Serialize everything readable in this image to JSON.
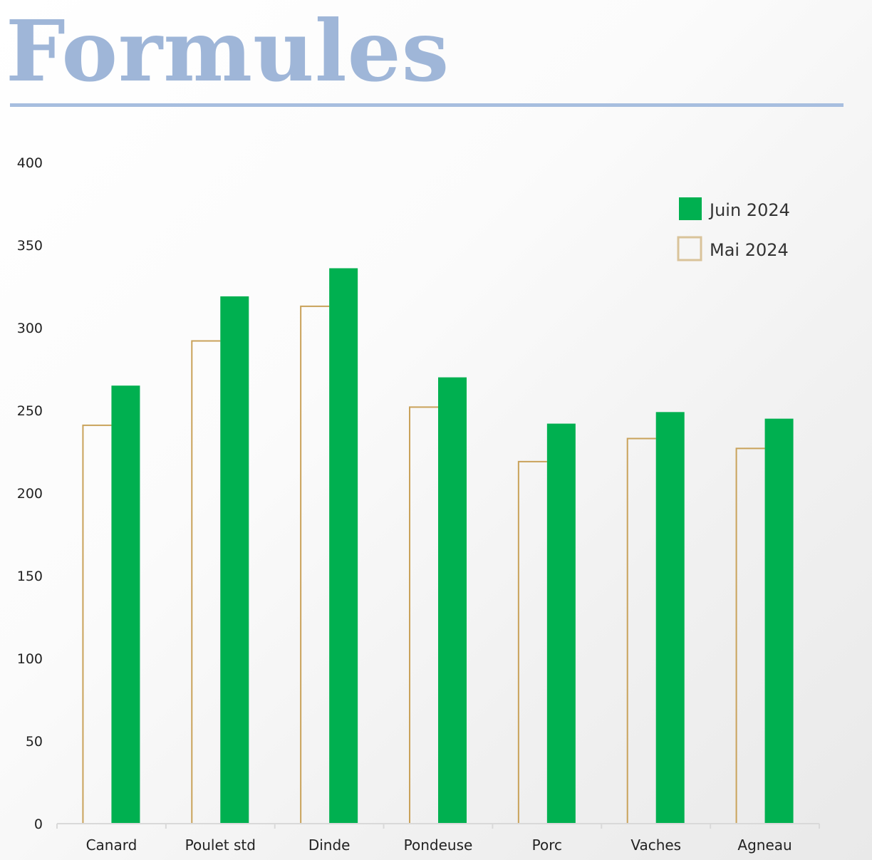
{
  "page": {
    "title": "Formules"
  },
  "colors": {
    "title": "#9fb6d8",
    "rule": "#a7bedf",
    "juin": "#00b050",
    "mai_stroke": "#c9a25a",
    "axis": "#d9d9d9"
  },
  "chart_data": {
    "type": "bar",
    "categories": [
      "Canard",
      "Poulet std",
      "Dinde",
      "Pondeuse",
      "Porc",
      "Vaches",
      "Agneau"
    ],
    "series": [
      {
        "name": "Mai 2024",
        "style": "outline",
        "values": [
          241,
          292,
          313,
          252,
          219,
          233,
          227
        ]
      },
      {
        "name": "Juin 2024",
        "style": "filled",
        "values": [
          265,
          319,
          336,
          270,
          242,
          249,
          245
        ]
      }
    ],
    "ylim": [
      0,
      400
    ],
    "yticks": [
      0,
      50,
      100,
      150,
      200,
      250,
      300,
      350,
      400
    ],
    "grid": false,
    "legend": "top-right",
    "legend_order": [
      "Juin 2024",
      "Mai 2024"
    ]
  }
}
